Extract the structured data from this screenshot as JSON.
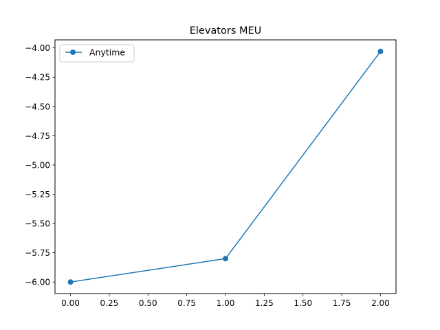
{
  "chart_data": {
    "type": "line",
    "title": "Elevators MEU",
    "xlabel": "",
    "ylabel": "",
    "x": [
      0,
      1,
      2
    ],
    "series": [
      {
        "name": "Anytime",
        "values": [
          -6.0,
          -5.8,
          -4.03
        ],
        "color": "#1f77b4",
        "marker": "circle"
      }
    ],
    "xlim": [
      -0.1,
      2.1
    ],
    "ylim": [
      -6.0985,
      -3.9315
    ],
    "xticks": [
      "0.00",
      "0.25",
      "0.50",
      "0.75",
      "1.00",
      "1.25",
      "1.50",
      "1.75",
      "2.00"
    ],
    "yticks": [
      "-6.00",
      "-5.75",
      "-5.50",
      "-5.25",
      "-5.00",
      "-4.75",
      "-4.50",
      "-4.25",
      "-4.00"
    ],
    "grid": false,
    "legend_position": "upper-left"
  }
}
